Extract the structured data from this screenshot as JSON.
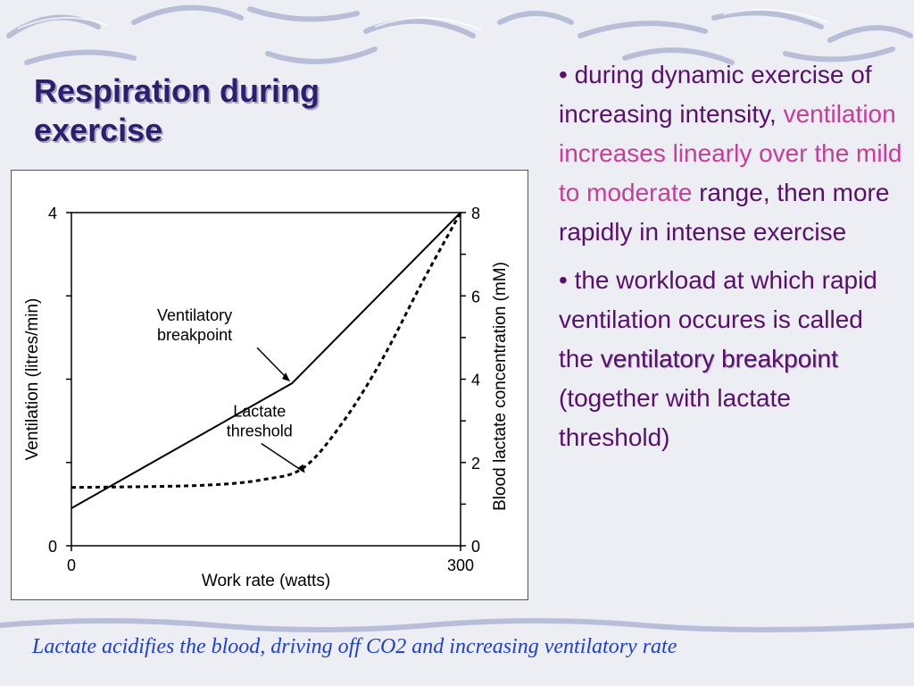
{
  "slide": {
    "title": "Respiration during exercise",
    "bullets": [
      {
        "parts": [
          {
            "text": "• during dynamic exercise of increasing intensity, ",
            "style": "normal"
          },
          {
            "text": "ventilation increases linearly over the mild to moderate",
            "style": "pink"
          },
          {
            "text": " range, then more rapidly in intense exercise",
            "style": "normal"
          }
        ]
      },
      {
        "parts": [
          {
            "text": "• the workload at which rapid ventilation occures is called the ",
            "style": "normal"
          },
          {
            "text": "ventilatory breakpoint",
            "style": "bold"
          },
          {
            "text": " (together with lactate threshold)",
            "style": "normal"
          }
        ]
      }
    ],
    "footer": "Lactate acidifies the blood, driving off CO2 and increasing ventilatory rate",
    "colors": {
      "title": "#2e1e6e",
      "body": "#5a0f6e",
      "highlight": "#c83c9a",
      "footer": "#1f3fd0"
    }
  },
  "chart_data": {
    "type": "line",
    "xlabel": "Work rate (watts)",
    "ylabel": "Ventilation (litres/min)",
    "y2label": "Blood lactate concentration (mM)",
    "xlim": [
      0,
      300
    ],
    "ylim": [
      0,
      4
    ],
    "y2lim": [
      0,
      8
    ],
    "x_ticks": [
      "0",
      "300"
    ],
    "y_ticks": [
      "0",
      "4"
    ],
    "y2_ticks": [
      "0",
      "2",
      "4",
      "6",
      "8"
    ],
    "series": [
      {
        "axis": "left",
        "style": "solid",
        "points": [
          [
            0,
            0.45
          ],
          [
            170,
            1.95
          ],
          [
            300,
            4.0
          ]
        ]
      },
      {
        "axis": "right",
        "style": "dashed",
        "points": [
          [
            0,
            1.4
          ],
          [
            100,
            1.45
          ],
          [
            150,
            1.6
          ],
          [
            180,
            1.9
          ],
          [
            210,
            3.0
          ],
          [
            240,
            4.5
          ],
          [
            270,
            6.3
          ],
          [
            300,
            8.0
          ]
        ]
      }
    ],
    "annotations": [
      {
        "text_lines": [
          "Ventilatory",
          "breakpoint"
        ],
        "target": [
          170,
          1.95
        ],
        "axis": "left"
      },
      {
        "text_lines": [
          "Lactate",
          "threshold"
        ],
        "target": [
          180,
          1.7
        ],
        "axis": "right"
      }
    ]
  }
}
